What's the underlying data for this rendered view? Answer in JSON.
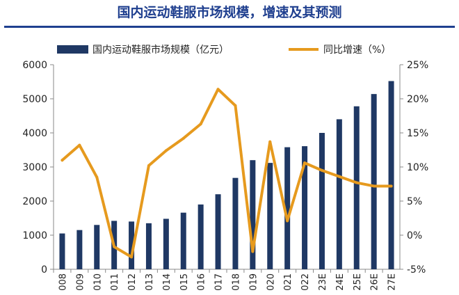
{
  "title": "国内运动鞋服市场规模，增速及其预测",
  "chart_data": {
    "type": "bar+line",
    "categories": [
      "2008",
      "2009",
      "2010",
      "2011",
      "2012",
      "2013",
      "2014",
      "2015",
      "2016",
      "2017",
      "2018",
      "2019",
      "2020",
      "2021",
      "2022",
      "2023E",
      "2024E",
      "2025E",
      "2026E",
      "2027E"
    ],
    "tick_labels": [
      "008",
      "009",
      "010",
      "011",
      "012",
      "013",
      "014",
      "015",
      "016",
      "017",
      "018",
      "019",
      "020",
      "021",
      "022",
      "23E",
      "24E",
      "25E",
      "26E",
      "27E"
    ],
    "series": [
      {
        "name": "国内运动鞋服市场规模（亿元）",
        "type": "bar",
        "axis": "left",
        "values": [
          1050,
          1150,
          1300,
          1420,
          1400,
          1350,
          1480,
          1660,
          1900,
          2200,
          2680,
          3200,
          3120,
          3580,
          3610,
          4000,
          4400,
          4780,
          5140,
          5520
        ]
      },
      {
        "name": "同比增速（%）",
        "type": "line",
        "axis": "right",
        "values": [
          11.0,
          13.2,
          8.5,
          -1.7,
          -3.2,
          10.2,
          12.4,
          14.2,
          16.3,
          21.4,
          19.0,
          -2.4,
          13.7,
          2.1,
          10.6,
          9.5,
          8.6,
          7.7,
          7.2,
          7.2
        ]
      }
    ],
    "ylim_left": [
      0,
      6000
    ],
    "yticks_left": [
      0,
      1000,
      2000,
      3000,
      4000,
      5000,
      6000
    ],
    "ylim_right": [
      -5,
      25
    ],
    "yticks_right": [
      "-5%",
      "0%",
      "5%",
      "10%",
      "15%",
      "20%",
      "25%"
    ],
    "colors": {
      "bar": "#1f3864",
      "line": "#e69a1e",
      "title": "#1f3f8f"
    },
    "legend": "top"
  }
}
